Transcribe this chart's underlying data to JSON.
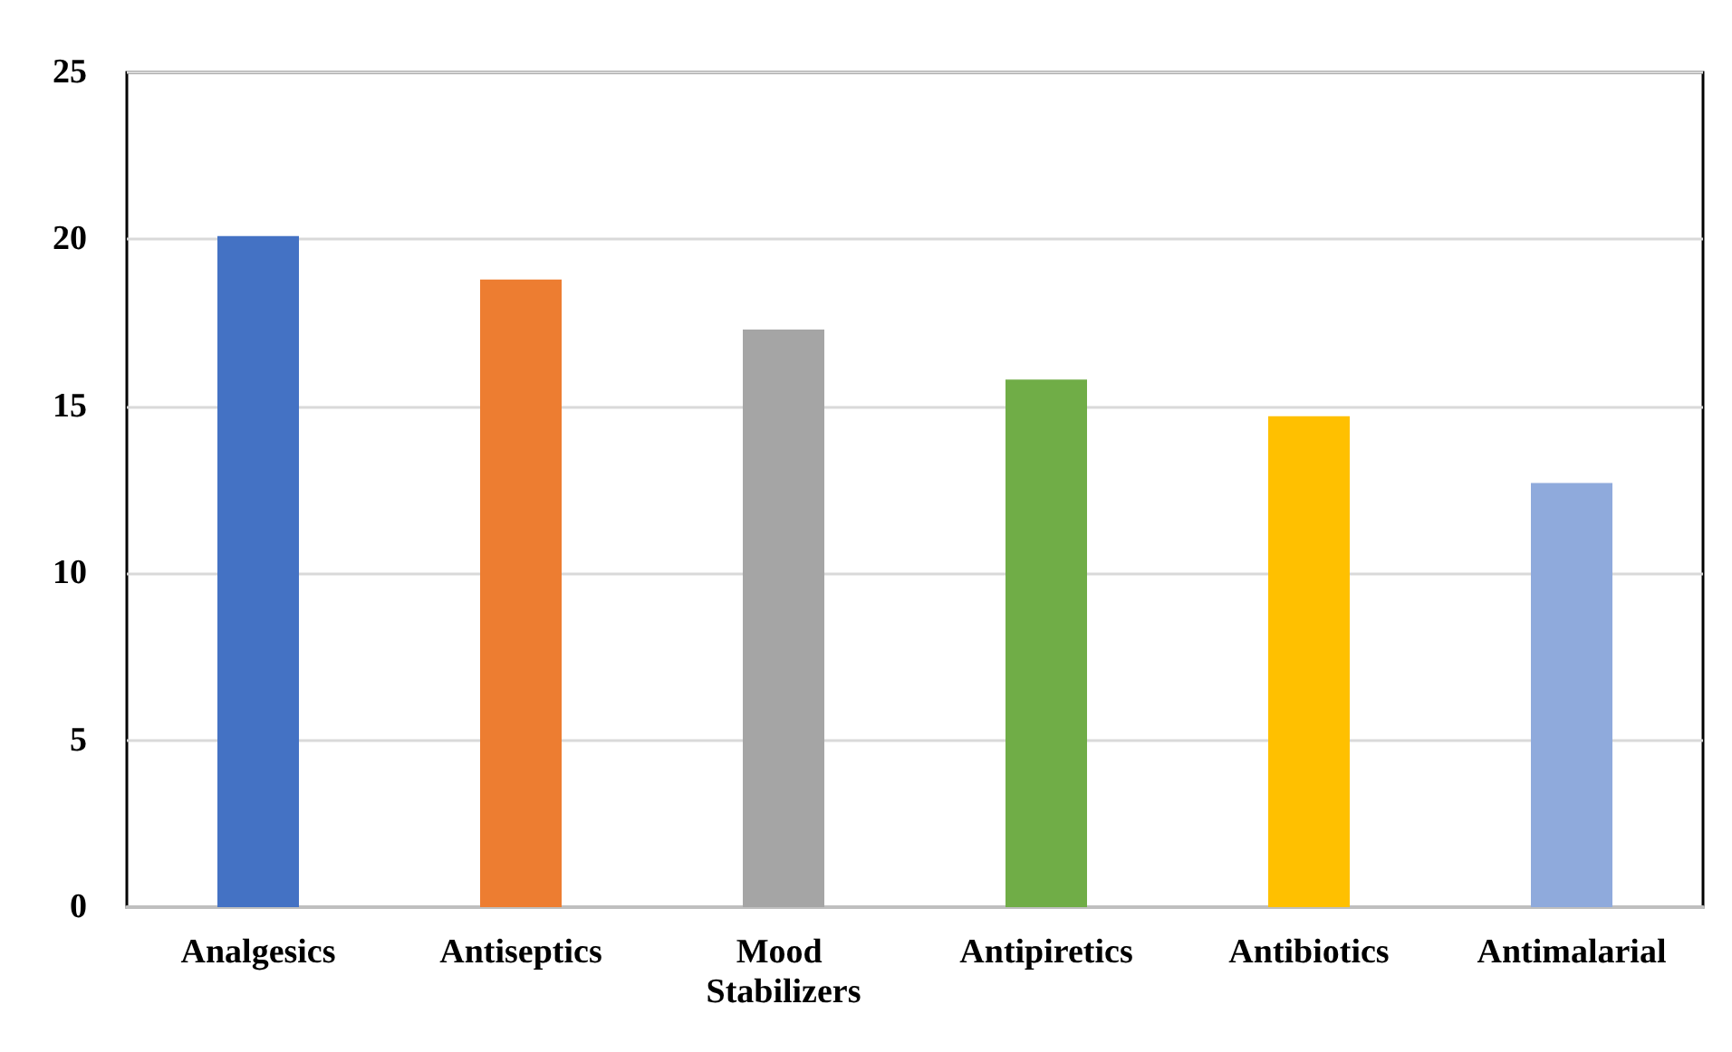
{
  "chart_data": {
    "type": "bar",
    "categories": [
      "Analgesics",
      "Antiseptics",
      "Mood Stabilizers",
      "Antipiretics",
      "Antibiotics",
      "Antimalarial"
    ],
    "values": [
      20.1,
      18.8,
      17.3,
      15.8,
      14.7,
      12.7
    ],
    "colors": [
      "#4472c4",
      "#ed7d31",
      "#a5a5a5",
      "#70ad47",
      "#ffc000",
      "#8faadc"
    ],
    "ylim": [
      0,
      25
    ],
    "yticks": [
      0,
      5,
      10,
      15,
      20,
      25
    ],
    "grid": "y"
  }
}
